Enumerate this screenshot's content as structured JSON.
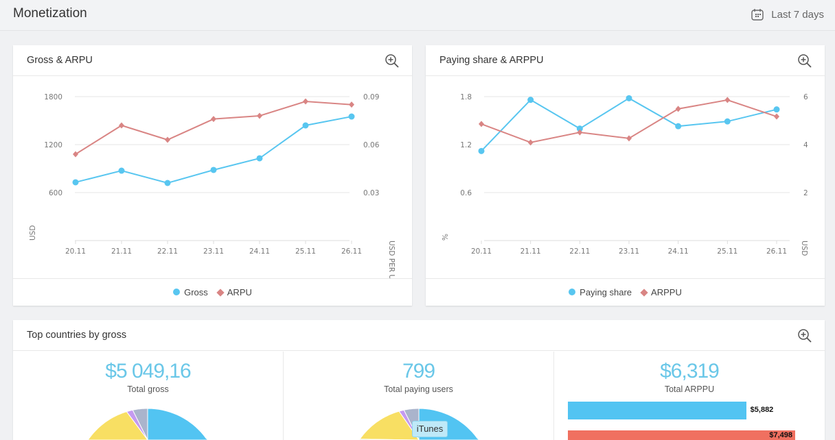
{
  "header": {
    "title": "Monetization",
    "range_label": "Last 7 days"
  },
  "chart_data": [
    {
      "type": "line",
      "title": "Gross & ARPU",
      "categories": [
        "20.11",
        "21.11",
        "22.11",
        "23.11",
        "24.11",
        "25.11",
        "26.11"
      ],
      "ylabel": "USD",
      "y2label": "USD PER USER",
      "ylim": [
        0,
        1800
      ],
      "y2lim": [
        0,
        0.09
      ],
      "yticks": [
        "600",
        "1200",
        "1800"
      ],
      "y2ticks": [
        "0.03",
        "0.06",
        "0.09"
      ],
      "grid": true,
      "legend": "bottom",
      "series": [
        {
          "name": "Gross",
          "axis": "left",
          "color": "#58c6f0",
          "marker": "circle",
          "values": [
            729,
            874,
            720,
            883,
            1029,
            1440,
            1551
          ]
        },
        {
          "name": "ARPU",
          "axis": "right",
          "color": "#d98584",
          "marker": "diamond",
          "values": [
            0.054,
            0.072,
            0.063,
            0.076,
            0.078,
            0.087,
            0.085
          ]
        }
      ]
    },
    {
      "type": "line",
      "title": "Paying share & ARPPU",
      "categories": [
        "20.11",
        "21.11",
        "22.11",
        "23.11",
        "24.11",
        "25.11",
        "26.11"
      ],
      "ylabel": "%",
      "y2label": "USD",
      "ylim": [
        0,
        1.8
      ],
      "y2lim": [
        0,
        6
      ],
      "yticks": [
        "0.6",
        "1.2",
        "1.8"
      ],
      "y2ticks": [
        "2",
        "4",
        "6"
      ],
      "grid": true,
      "legend": "bottom",
      "series": [
        {
          "name": "Paying share",
          "axis": "left",
          "color": "#58c6f0",
          "marker": "circle",
          "values": [
            1.12,
            1.76,
            1.4,
            1.78,
            1.43,
            1.49,
            1.64
          ]
        },
        {
          "name": "ARPPU",
          "axis": "right",
          "color": "#d98584",
          "marker": "diamond",
          "values": [
            4.86,
            4.09,
            4.51,
            4.26,
            5.49,
            5.86,
            5.17
          ]
        }
      ]
    }
  ],
  "countries": {
    "title": "Top countries by gross",
    "gross": {
      "value": "$5 049,16",
      "label": "Total gross"
    },
    "paying": {
      "value": "799",
      "label": "Total paying users",
      "tooltip": "iTunes"
    },
    "arppu": {
      "value": "$6,319",
      "label": "Total ARPPU",
      "bars": [
        {
          "label": "$5,882",
          "value": 5.882,
          "color": "#52c4f2"
        },
        {
          "label": "$7,498",
          "value": 7.498,
          "color": "#f07060"
        }
      ]
    }
  },
  "icons": {
    "zoom": "zoom-in-icon",
    "calendar": "calendar-icon"
  }
}
